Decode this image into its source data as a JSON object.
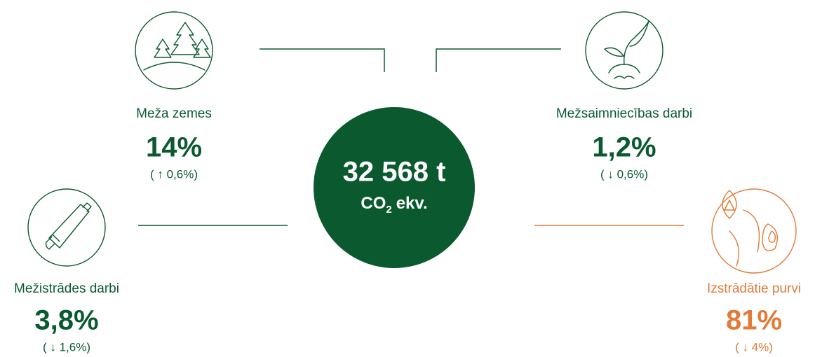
{
  "center": {
    "value": "32 568 t",
    "unit_main": "CO",
    "unit_sub": "2",
    "unit_rest": "ekv.",
    "color": "#0b5a2f"
  },
  "items": [
    {
      "label": "Meža zemes",
      "value": "14%",
      "change": "( ↑ 0,6%)",
      "color": "#0b5a2f"
    },
    {
      "label": "Mežsaimniecības darbi",
      "value": "1,2%",
      "change": "( ↓ 0,6%)",
      "color": "#0b5a2f"
    },
    {
      "label": "Mežistrādes darbi",
      "value": "3,8%",
      "change": "( ↓ 1,6%)",
      "color": "#0b5a2f"
    },
    {
      "label": "Izstrādātie purvi",
      "value": "81%",
      "change": "( ↓ 4%)",
      "color": "#e07b39"
    }
  ]
}
